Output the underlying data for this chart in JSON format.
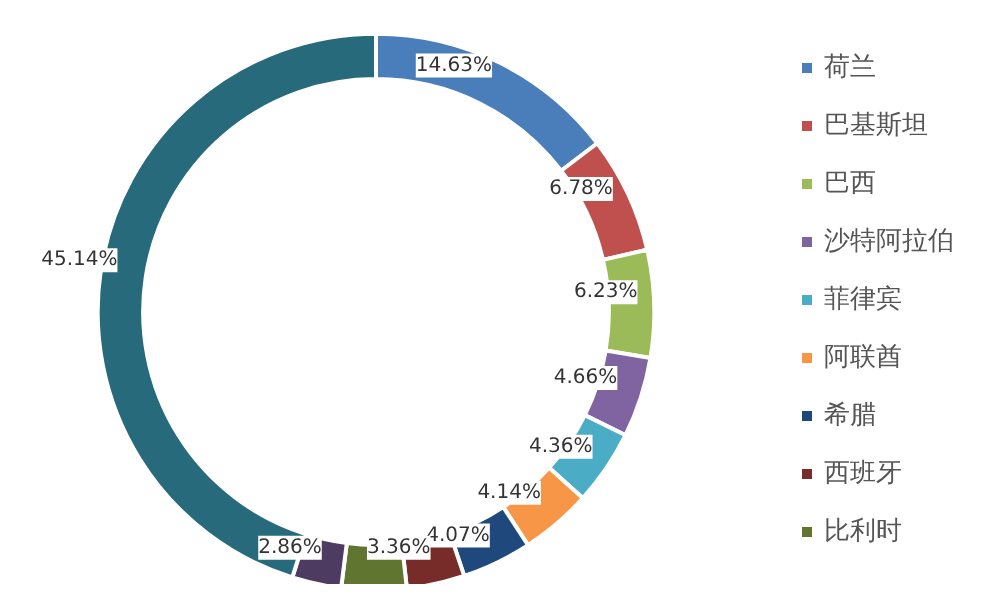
{
  "chart_data": {
    "type": "donut",
    "categories": [
      "荷兰",
      "巴基斯坦",
      "巴西",
      "沙特阿拉伯",
      "菲律宾",
      "阿联酋",
      "希腊",
      "西班牙",
      "比利时",
      null,
      null
    ],
    "values": [
      14.63,
      6.78,
      6.23,
      4.66,
      4.36,
      4.14,
      4.07,
      3.36,
      3.77,
      2.86,
      45.14
    ],
    "colors": [
      "#4a7ebb",
      "#c0504d",
      "#9bbb59",
      "#8064a2",
      "#4bacc6",
      "#f79646",
      "#1f497d",
      "#772c2a",
      "#5f7530",
      "#4d3b62",
      "#276a7c"
    ],
    "value_labels": [
      "14.63%",
      "6.78%",
      "6.23%",
      "4.66%",
      "4.36%",
      "4.14%",
      "4.07%",
      "3.36%",
      null,
      "2.86%",
      "45.14%"
    ],
    "legend": "right"
  }
}
